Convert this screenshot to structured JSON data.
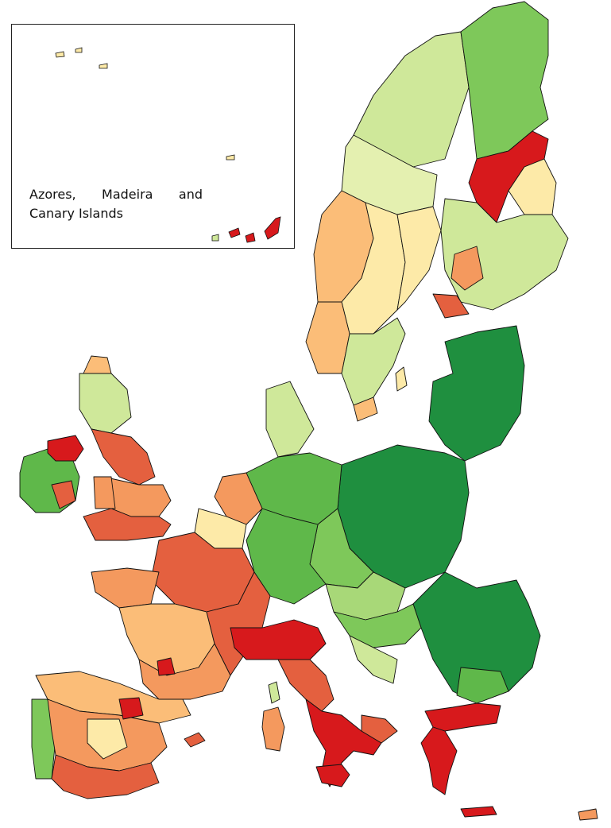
{
  "inset": {
    "caption": "Azores, Madeira and Canary Islands"
  },
  "palette": {
    "dark_green": "#1f8f3f",
    "green": "#5fb84a",
    "light_green": "#a8d878",
    "pale_green": "#cfe89a",
    "pale_yellow": "#fdeaa8",
    "light_orange": "#fbbd78",
    "orange": "#f4995e",
    "red_orange": "#e4603f",
    "red": "#d7191c"
  }
}
